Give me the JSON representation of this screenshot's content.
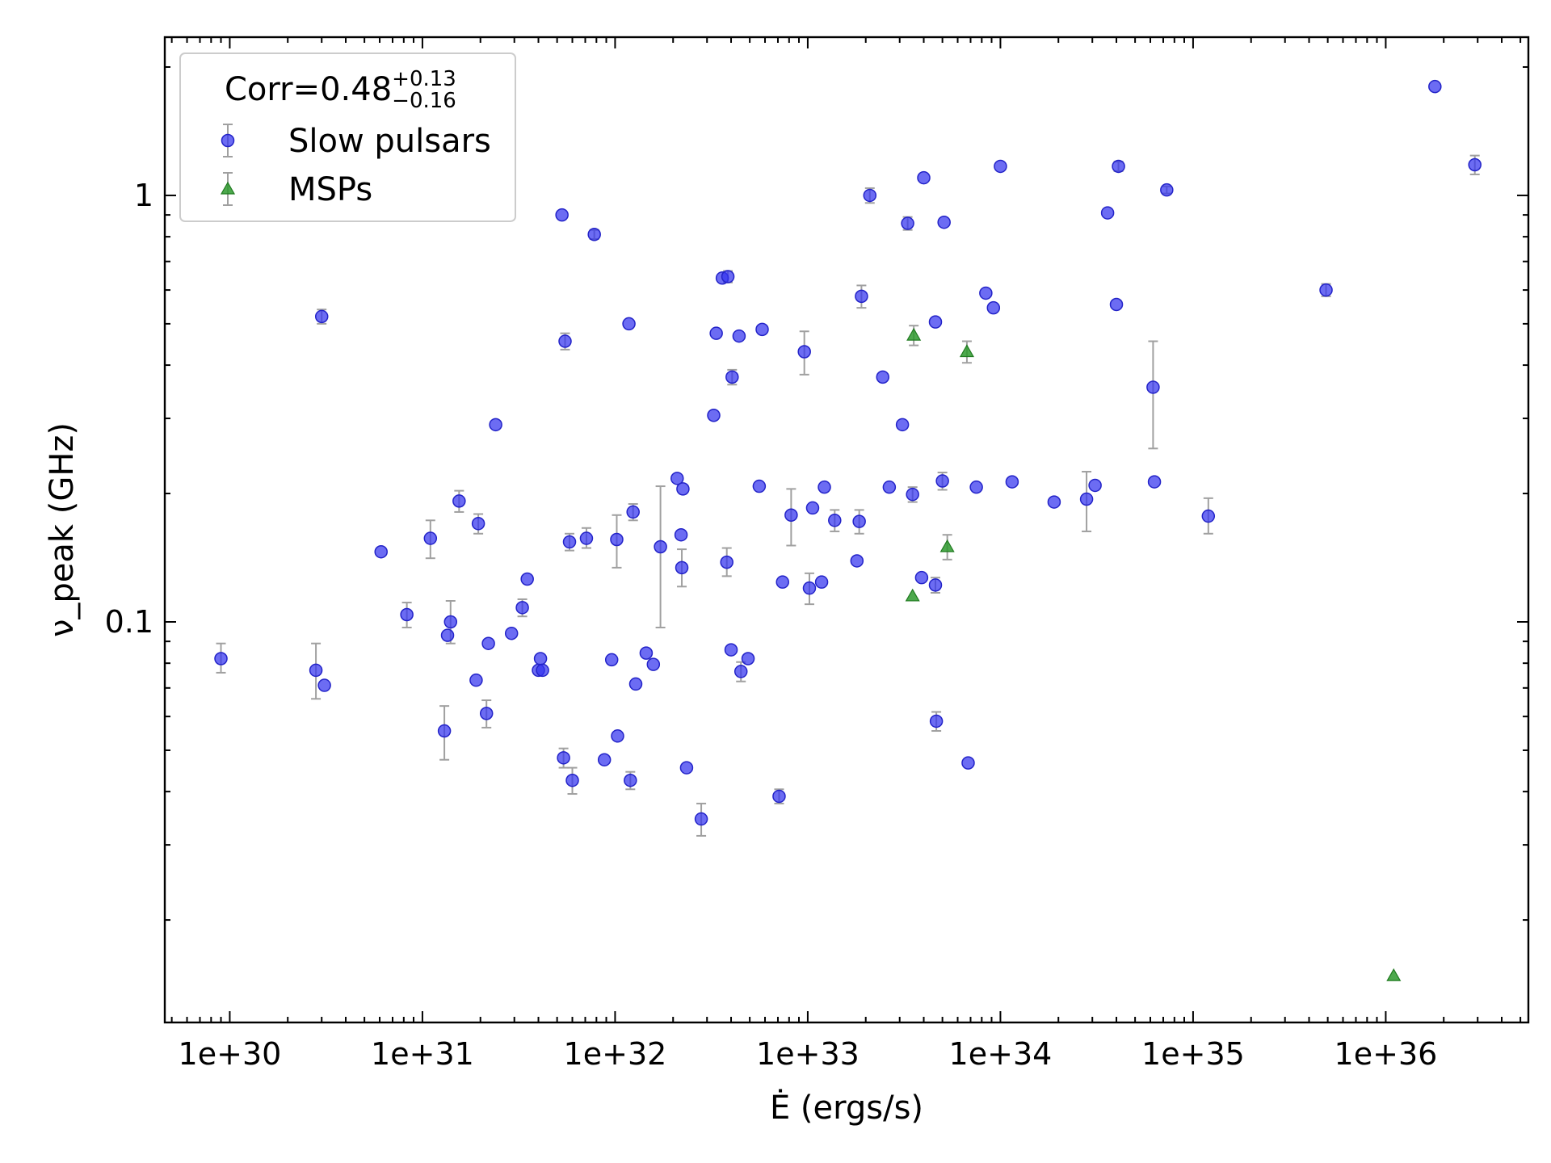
{
  "chart_data": {
    "type": "scatter",
    "xlabel": "Ė (ergs/s)",
    "ylabel": "ν_peak (GHz)",
    "x_scale": "log",
    "y_scale": "log",
    "xlim": [
      4.6e+29,
      5.5e+36
    ],
    "ylim": [
      0.0115,
      2.35
    ],
    "x_ticks": [
      {
        "value": 1e+30,
        "label": "1e+30"
      },
      {
        "value": 1e+31,
        "label": "1e+31"
      },
      {
        "value": 1e+32,
        "label": "1e+32"
      },
      {
        "value": 1e+33,
        "label": "1e+33"
      },
      {
        "value": 1e+34,
        "label": "1e+34"
      },
      {
        "value": 1e+35,
        "label": "1e+35"
      },
      {
        "value": 1e+36,
        "label": "1e+36"
      }
    ],
    "y_ticks": [
      {
        "value": 0.1,
        "label": "0.1"
      },
      {
        "value": 1,
        "label": "1"
      }
    ],
    "legend": {
      "position": "top-left",
      "title_prefix": "Corr=0.48",
      "title_sup": "+0.13",
      "title_sub": "−0.16"
    },
    "series": [
      {
        "name": "Slow pulsars",
        "marker": "circle",
        "color": "#3333ee",
        "points": [
          {
            "x": 9e+29,
            "y": 0.082,
            "err": [
              0.076,
              0.089
            ]
          },
          {
            "x": 2.8e+30,
            "y": 0.077,
            "err": [
              0.066,
              0.089
            ]
          },
          {
            "x": 3e+30,
            "y": 0.52,
            "err": [
              0.5,
              0.54
            ]
          },
          {
            "x": 3.1e+30,
            "y": 0.071
          },
          {
            "x": 6.1e+30,
            "y": 0.146
          },
          {
            "x": 8.3e+30,
            "y": 0.104,
            "err": [
              0.097,
              0.111
            ]
          },
          {
            "x": 1.1e+31,
            "y": 0.157,
            "err": [
              0.141,
              0.173
            ]
          },
          {
            "x": 1.3e+31,
            "y": 0.0555,
            "err": [
              0.0475,
              0.0635
            ]
          },
          {
            "x": 1.35e+31,
            "y": 0.093
          },
          {
            "x": 1.4e+31,
            "y": 0.1,
            "err": [
              0.089,
              0.112
            ]
          },
          {
            "x": 1.55e+31,
            "y": 0.192,
            "err": [
              0.181,
              0.203
            ]
          },
          {
            "x": 1.9e+31,
            "y": 0.073
          },
          {
            "x": 1.95e+31,
            "y": 0.17,
            "err": [
              0.161,
              0.179
            ]
          },
          {
            "x": 2.15e+31,
            "y": 0.061,
            "err": [
              0.0565,
              0.0655
            ]
          },
          {
            "x": 2.2e+31,
            "y": 0.089
          },
          {
            "x": 2.4e+31,
            "y": 0.29
          },
          {
            "x": 2.9e+31,
            "y": 0.094
          },
          {
            "x": 3.3e+31,
            "y": 0.108,
            "err": [
              0.103,
              0.113
            ]
          },
          {
            "x": 3.5e+31,
            "y": 0.126
          },
          {
            "x": 4e+31,
            "y": 0.077
          },
          {
            "x": 4.1e+31,
            "y": 0.082
          },
          {
            "x": 4.2e+31,
            "y": 0.077
          },
          {
            "x": 5.3e+31,
            "y": 0.9
          },
          {
            "x": 5.4e+31,
            "y": 0.048,
            "err": [
              0.0455,
              0.0505
            ]
          },
          {
            "x": 5.5e+31,
            "y": 0.455,
            "err": [
              0.435,
              0.475
            ]
          },
          {
            "x": 5.8e+31,
            "y": 0.154,
            "err": [
              0.147,
              0.161
            ]
          },
          {
            "x": 6e+31,
            "y": 0.0425,
            "err": [
              0.0395,
              0.0455
            ]
          },
          {
            "x": 7.1e+31,
            "y": 0.157,
            "err": [
              0.149,
              0.166
            ]
          },
          {
            "x": 7.8e+31,
            "y": 0.81,
            "err": [
              0.79,
              0.83
            ]
          },
          {
            "x": 8.8e+31,
            "y": 0.0475
          },
          {
            "x": 9.6e+31,
            "y": 0.0815
          },
          {
            "x": 1.02e+32,
            "y": 0.156,
            "err": [
              0.134,
              0.178
            ]
          },
          {
            "x": 1.03e+32,
            "y": 0.054
          },
          {
            "x": 1.18e+32,
            "y": 0.5
          },
          {
            "x": 1.2e+32,
            "y": 0.0425,
            "err": [
              0.0405,
              0.0445
            ]
          },
          {
            "x": 1.24e+32,
            "y": 0.181,
            "err": [
              0.173,
              0.189
            ]
          },
          {
            "x": 1.28e+32,
            "y": 0.0715
          },
          {
            "x": 1.45e+32,
            "y": 0.0845
          },
          {
            "x": 1.58e+32,
            "y": 0.0795
          },
          {
            "x": 1.72e+32,
            "y": 0.15,
            "err": [
              0.097,
              0.208
            ]
          },
          {
            "x": 2.1e+32,
            "y": 0.217
          },
          {
            "x": 2.2e+32,
            "y": 0.16
          },
          {
            "x": 2.22e+32,
            "y": 0.134,
            "err": [
              0.121,
              0.148
            ]
          },
          {
            "x": 2.25e+32,
            "y": 0.205
          },
          {
            "x": 2.35e+32,
            "y": 0.0455
          },
          {
            "x": 2.8e+32,
            "y": 0.0345,
            "err": [
              0.0315,
              0.0375
            ]
          },
          {
            "x": 3.25e+32,
            "y": 0.305
          },
          {
            "x": 3.35e+32,
            "y": 0.475
          },
          {
            "x": 3.6e+32,
            "y": 0.64
          },
          {
            "x": 3.8e+32,
            "y": 0.138,
            "err": [
              0.128,
              0.149
            ]
          },
          {
            "x": 3.85e+32,
            "y": 0.645,
            "err": [
              0.625,
              0.665
            ]
          },
          {
            "x": 4e+32,
            "y": 0.086
          },
          {
            "x": 4.05e+32,
            "y": 0.375,
            "err": [
              0.36,
              0.39
            ]
          },
          {
            "x": 4.4e+32,
            "y": 0.468
          },
          {
            "x": 4.5e+32,
            "y": 0.0765,
            "err": [
              0.0725,
              0.0805
            ]
          },
          {
            "x": 4.9e+32,
            "y": 0.082
          },
          {
            "x": 5.6e+32,
            "y": 0.208
          },
          {
            "x": 5.8e+32,
            "y": 0.485
          },
          {
            "x": 7.4e+32,
            "y": 0.124
          },
          {
            "x": 7.1e+32,
            "y": 0.039,
            "err": [
              0.0375,
              0.0405
            ]
          },
          {
            "x": 8.2e+32,
            "y": 0.178,
            "err": [
              0.151,
              0.205
            ]
          },
          {
            "x": 9.6e+32,
            "y": 0.43,
            "err": [
              0.38,
              0.48
            ]
          },
          {
            "x": 1.02e+33,
            "y": 0.12,
            "err": [
              0.11,
              0.13
            ]
          },
          {
            "x": 1.06e+33,
            "y": 0.185
          },
          {
            "x": 1.18e+33,
            "y": 0.124
          },
          {
            "x": 1.22e+33,
            "y": 0.207
          },
          {
            "x": 1.38e+33,
            "y": 0.173,
            "err": [
              0.163,
              0.183
            ]
          },
          {
            "x": 1.8e+33,
            "y": 0.139
          },
          {
            "x": 1.85e+33,
            "y": 0.172,
            "err": [
              0.161,
              0.183
            ]
          },
          {
            "x": 1.9e+33,
            "y": 0.58,
            "err": [
              0.545,
              0.615
            ]
          },
          {
            "x": 2.1e+33,
            "y": 1.0,
            "err": [
              0.96,
              1.04
            ]
          },
          {
            "x": 2.45e+33,
            "y": 0.375
          },
          {
            "x": 2.65e+33,
            "y": 0.207
          },
          {
            "x": 3.1e+33,
            "y": 0.29
          },
          {
            "x": 3.3e+33,
            "y": 0.86,
            "err": [
              0.83,
              0.89
            ]
          },
          {
            "x": 3.5e+33,
            "y": 0.199,
            "err": [
              0.191,
              0.207
            ]
          },
          {
            "x": 3.9e+33,
            "y": 0.127
          },
          {
            "x": 4e+33,
            "y": 1.1
          },
          {
            "x": 4.6e+33,
            "y": 0.505
          },
          {
            "x": 4.6e+33,
            "y": 0.122,
            "err": [
              0.117,
              0.127
            ]
          },
          {
            "x": 4.65e+33,
            "y": 0.0585,
            "err": [
              0.0555,
              0.0615
            ]
          },
          {
            "x": 5e+33,
            "y": 0.214,
            "err": [
              0.204,
              0.224
            ]
          },
          {
            "x": 5.1e+33,
            "y": 0.865
          },
          {
            "x": 6.8e+33,
            "y": 0.0467
          },
          {
            "x": 7.5e+33,
            "y": 0.207
          },
          {
            "x": 8.4e+33,
            "y": 0.59
          },
          {
            "x": 9.2e+33,
            "y": 0.545
          },
          {
            "x": 1e+34,
            "y": 1.17
          },
          {
            "x": 1.15e+34,
            "y": 0.213
          },
          {
            "x": 1.9e+34,
            "y": 0.191
          },
          {
            "x": 2.8e+34,
            "y": 0.194,
            "err": [
              0.163,
              0.225
            ]
          },
          {
            "x": 3.1e+34,
            "y": 0.209
          },
          {
            "x": 3.6e+34,
            "y": 0.91
          },
          {
            "x": 4e+34,
            "y": 0.555
          },
          {
            "x": 4.1e+34,
            "y": 1.17,
            "err": [
              1.14,
              1.2
            ]
          },
          {
            "x": 6.2e+34,
            "y": 0.355,
            "err": [
              0.255,
              0.455
            ]
          },
          {
            "x": 6.3e+34,
            "y": 0.213
          },
          {
            "x": 7.3e+34,
            "y": 1.03,
            "err": [
              1.01,
              1.05
            ]
          },
          {
            "x": 1.2e+35,
            "y": 0.177,
            "err": [
              0.161,
              0.195
            ]
          },
          {
            "x": 4.9e+35,
            "y": 0.6,
            "err": [
              0.58,
              0.62
            ]
          },
          {
            "x": 1.8e+36,
            "y": 1.8
          },
          {
            "x": 2.9e+36,
            "y": 1.18,
            "err": [
              1.12,
              1.24
            ]
          }
        ]
      },
      {
        "name": "MSPs",
        "marker": "triangle",
        "color": "#2e9a2e",
        "points": [
          {
            "x": 3.55e+33,
            "y": 0.47,
            "err": [
              0.445,
              0.495
            ]
          },
          {
            "x": 6.7e+33,
            "y": 0.43,
            "err": [
              0.405,
              0.455
            ]
          },
          {
            "x": 5.3e+33,
            "y": 0.15,
            "err": [
              0.14,
              0.16
            ]
          },
          {
            "x": 3.5e+33,
            "y": 0.115
          },
          {
            "x": 1.1e+36,
            "y": 0.0148
          }
        ]
      }
    ]
  }
}
